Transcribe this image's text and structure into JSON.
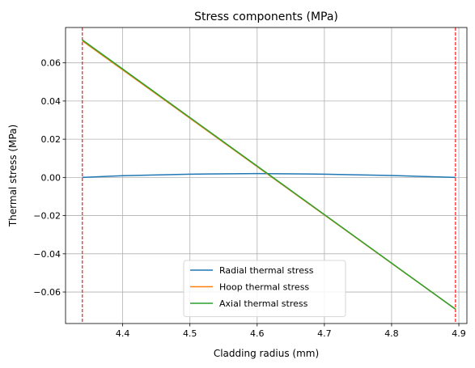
{
  "chart_data": {
    "type": "line",
    "title": "Stress components (MPa)",
    "xlabel": "Cladding radius (mm)",
    "ylabel": "Thermal stress (MPa)",
    "xlim": [
      4.315,
      4.912
    ],
    "ylim": [
      -0.0765,
      0.0785
    ],
    "xticks": [
      4.4,
      4.5,
      4.6,
      4.7,
      4.8,
      4.9
    ],
    "xtick_labels": [
      "4.4",
      "4.5",
      "4.6",
      "4.7",
      "4.8",
      "4.9"
    ],
    "yticks": [
      -0.06,
      -0.04,
      -0.02,
      0.0,
      0.02,
      0.04,
      0.06
    ],
    "ytick_labels": [
      "−0.06",
      "−0.04",
      "−0.02",
      "0.00",
      "0.02",
      "0.04",
      "0.06"
    ],
    "grid": true,
    "legend_position": "lower center",
    "vlines": [
      4.34,
      4.895
    ],
    "vline_color": "#ff0000",
    "series": [
      {
        "name": "Radial thermal stress",
        "color": "#1f77b4",
        "x": [
          4.34,
          4.4,
          4.5,
          4.6,
          4.7,
          4.8,
          4.895
        ],
        "y": [
          0.0,
          0.0009,
          0.0017,
          0.002,
          0.0017,
          0.001,
          0.0
        ]
      },
      {
        "name": "Hoop thermal stress",
        "color": "#ff7f0e",
        "x": [
          4.34,
          4.895
        ],
        "y": [
          0.0715,
          -0.069
        ]
      },
      {
        "name": "Axial thermal stress",
        "color": "#2ca02c",
        "x": [
          4.34,
          4.895
        ],
        "y": [
          0.072,
          -0.069
        ]
      }
    ]
  }
}
